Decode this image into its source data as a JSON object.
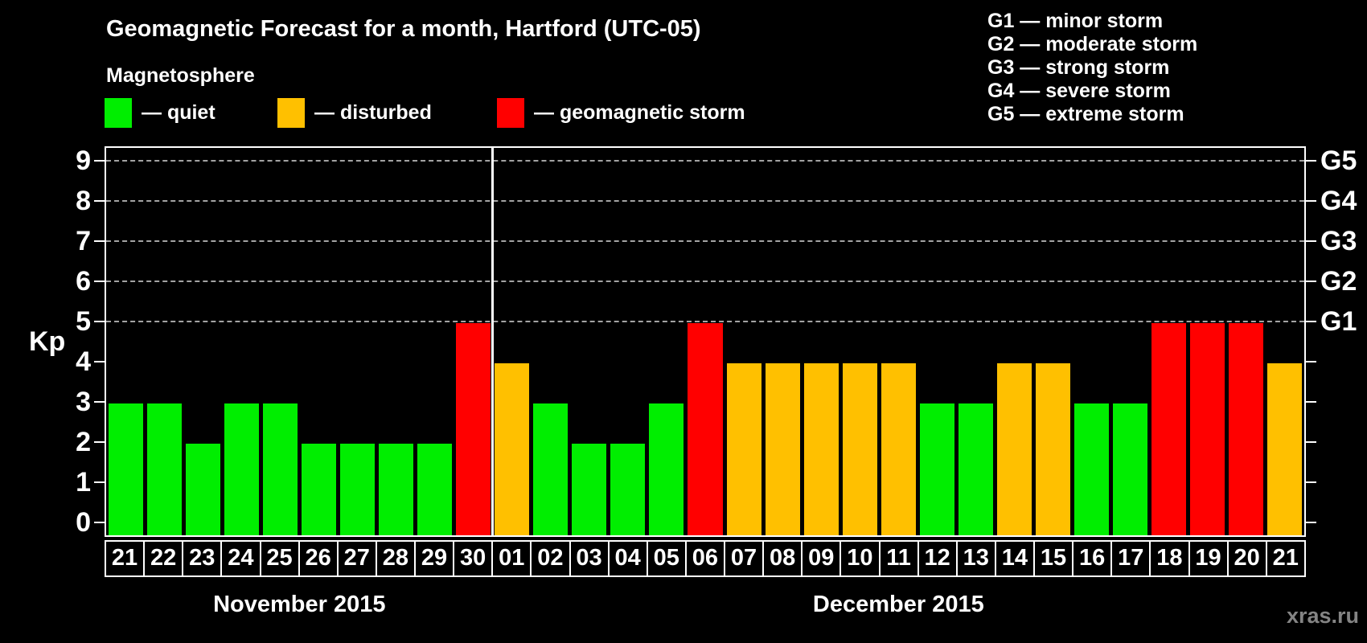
{
  "title": "Geomagnetic Forecast for a month, Hartford (UTC-05)",
  "subtitle": "Magnetosphere",
  "watermark": "xras.ru",
  "legend": [
    {
      "key": "quiet",
      "label": "— quiet",
      "color": "#00ee00"
    },
    {
      "key": "disturbed",
      "label": "— disturbed",
      "color": "#ffc000"
    },
    {
      "key": "storm",
      "label": "— geomagnetic storm",
      "color": "#ff0000"
    }
  ],
  "g_scale_legend": [
    "G1 — minor storm",
    "G2 — moderate storm",
    "G3 — strong storm",
    "G4 — severe storm",
    "G5 — extreme storm"
  ],
  "colors": {
    "quiet": "#00ee00",
    "disturbed": "#ffc000",
    "storm": "#ff0000",
    "grid": "#a3a3a3",
    "axis": "#ffffff",
    "background": "#000000",
    "watermark": "#848484"
  },
  "chart_data": {
    "type": "bar",
    "title": "Geomagnetic Forecast for a month, Hartford (UTC-05)",
    "xlabel": "",
    "ylabel": "Kp",
    "ylim": [
      0,
      9
    ],
    "y_ticks": [
      0,
      1,
      2,
      3,
      4,
      5,
      6,
      7,
      8,
      9
    ],
    "gridlines_at": [
      5,
      6,
      7,
      8,
      9
    ],
    "grid": true,
    "legend_position": "top-left",
    "right_axis_labels": [
      {
        "label": "G1",
        "kp": 5
      },
      {
        "label": "G2",
        "kp": 6
      },
      {
        "label": "G3",
        "kp": 7
      },
      {
        "label": "G4",
        "kp": 8
      },
      {
        "label": "G5",
        "kp": 9
      }
    ],
    "months": [
      {
        "label": "November 2015",
        "days": 10
      },
      {
        "label": "December 2015",
        "days": 21
      }
    ],
    "categories": [
      "21",
      "22",
      "23",
      "24",
      "25",
      "26",
      "27",
      "28",
      "29",
      "30",
      "01",
      "02",
      "03",
      "04",
      "05",
      "06",
      "07",
      "08",
      "09",
      "10",
      "11",
      "12",
      "13",
      "14",
      "15",
      "16",
      "17",
      "18",
      "19",
      "20",
      "21"
    ],
    "values": [
      3,
      3,
      2,
      3,
      3,
      2,
      2,
      2,
      2,
      5,
      4,
      3,
      2,
      2,
      3,
      5,
      4,
      4,
      4,
      4,
      4,
      3,
      3,
      4,
      4,
      3,
      3,
      5,
      5,
      5,
      4
    ],
    "statuses": [
      "quiet",
      "quiet",
      "quiet",
      "quiet",
      "quiet",
      "quiet",
      "quiet",
      "quiet",
      "quiet",
      "storm",
      "disturbed",
      "quiet",
      "quiet",
      "quiet",
      "quiet",
      "storm",
      "disturbed",
      "disturbed",
      "disturbed",
      "disturbed",
      "disturbed",
      "quiet",
      "quiet",
      "disturbed",
      "disturbed",
      "quiet",
      "quiet",
      "storm",
      "storm",
      "storm",
      "disturbed"
    ]
  }
}
